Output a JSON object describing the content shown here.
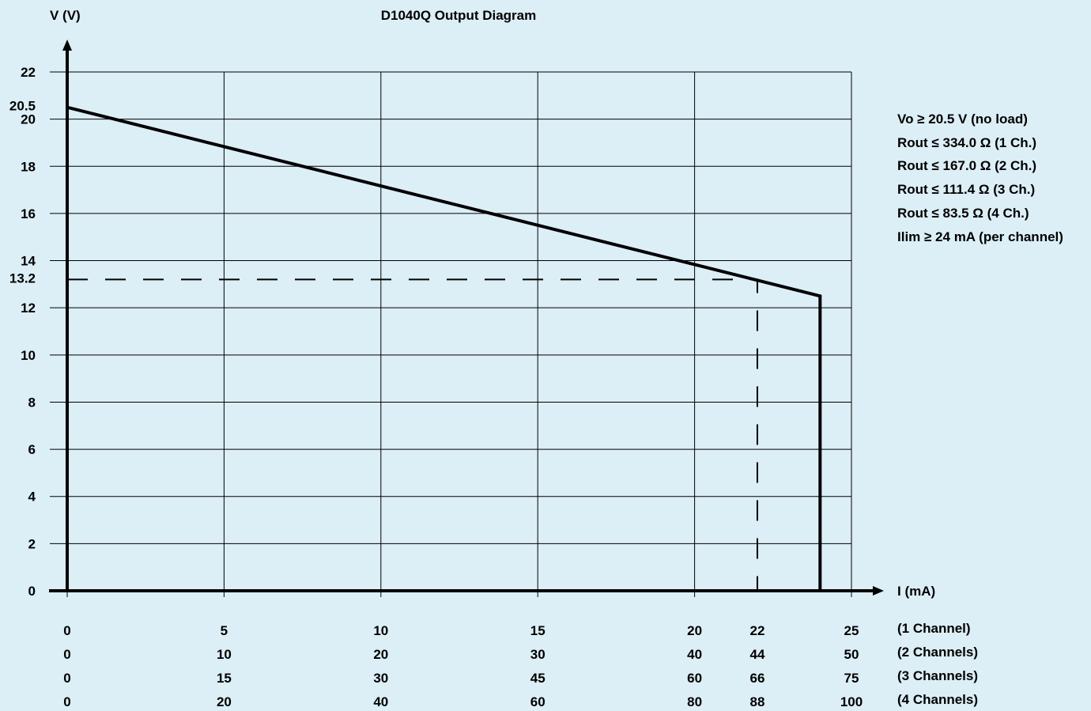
{
  "chart_data": {
    "type": "line",
    "title": "D1040Q Output Diagram",
    "ylabel": "V (V)",
    "xlabel": "I (mA)",
    "ylim": [
      0,
      22
    ],
    "xlim": [
      0,
      25
    ],
    "y_ticks": [
      "0",
      "2",
      "4",
      "6",
      "8",
      "10",
      "12",
      "14",
      "16",
      "18",
      "20",
      "22"
    ],
    "y_extra_ticks": [
      "20.5",
      "13.2"
    ],
    "x_grid": [
      0,
      5,
      10,
      15,
      20,
      25
    ],
    "grid": true,
    "x_tick_rows": [
      {
        "label": "(1 Channel)",
        "ticks": [
          {
            "x": 0,
            "label": "0"
          },
          {
            "x": 5,
            "label": "5"
          },
          {
            "x": 10,
            "label": "10"
          },
          {
            "x": 15,
            "label": "15"
          },
          {
            "x": 20,
            "label": "20"
          },
          {
            "x": 22,
            "label": "22"
          },
          {
            "x": 25,
            "label": "25"
          }
        ]
      },
      {
        "label": "(2 Channels)",
        "ticks": [
          {
            "x": 0,
            "label": "0"
          },
          {
            "x": 5,
            "label": "10"
          },
          {
            "x": 10,
            "label": "20"
          },
          {
            "x": 15,
            "label": "30"
          },
          {
            "x": 20,
            "label": "40"
          },
          {
            "x": 22,
            "label": "44"
          },
          {
            "x": 25,
            "label": "50"
          }
        ]
      },
      {
        "label": "(3 Channels)",
        "ticks": [
          {
            "x": 0,
            "label": "0"
          },
          {
            "x": 5,
            "label": "15"
          },
          {
            "x": 10,
            "label": "30"
          },
          {
            "x": 15,
            "label": "45"
          },
          {
            "x": 20,
            "label": "60"
          },
          {
            "x": 22,
            "label": "66"
          },
          {
            "x": 25,
            "label": "75"
          }
        ]
      },
      {
        "label": "(4 Channels)",
        "ticks": [
          {
            "x": 0,
            "label": "0"
          },
          {
            "x": 5,
            "label": "20"
          },
          {
            "x": 10,
            "label": "40"
          },
          {
            "x": 15,
            "label": "60"
          },
          {
            "x": 20,
            "label": "80"
          },
          {
            "x": 22,
            "label": "88"
          },
          {
            "x": 25,
            "label": "100"
          }
        ]
      }
    ],
    "series": [
      {
        "values": [
          [
            0,
            20.5
          ],
          [
            24,
            12.5
          ],
          [
            24,
            0
          ]
        ]
      }
    ],
    "reference_lines": [
      {
        "style": "dashed",
        "points": [
          [
            0,
            13.2
          ],
          [
            22,
            13.2
          ],
          [
            22,
            0
          ]
        ]
      }
    ],
    "annotations": [
      "Vo ≥ 20.5 V (no load)",
      "Rout ≤ 334.0 Ω (1 Ch.)",
      "Rout ≤ 167.0 Ω (2 Ch.)",
      "Rout ≤ 111.4 Ω (3 Ch.)",
      "Rout ≤ 83.5 Ω (4 Ch.)",
      "Ilim ≥ 24 mA (per channel)"
    ]
  }
}
